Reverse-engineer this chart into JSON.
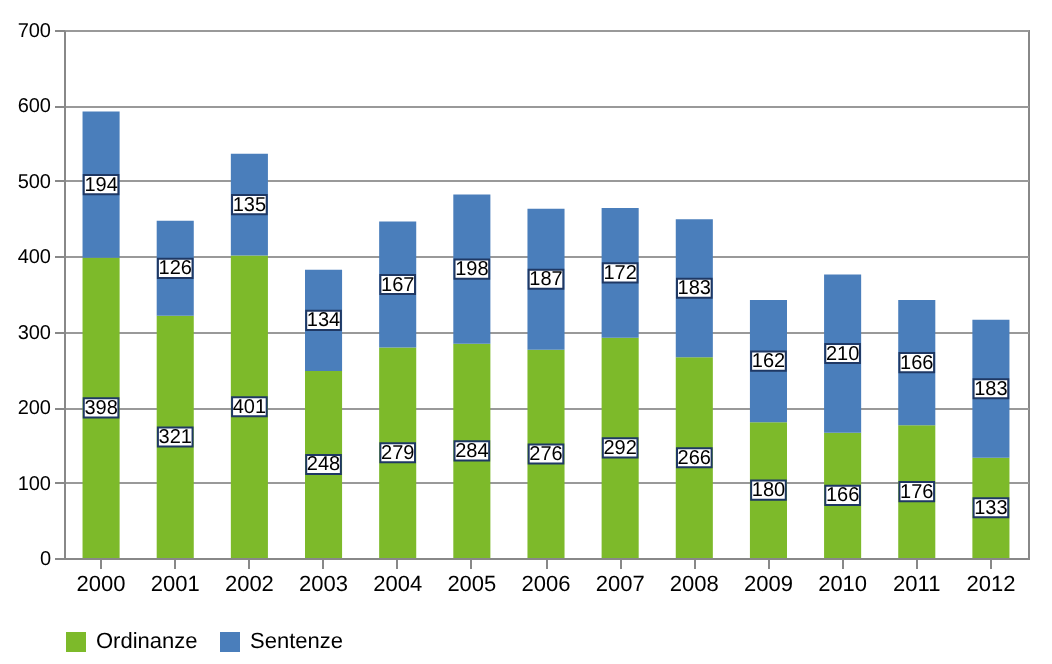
{
  "chart_data": {
    "type": "bar",
    "stacked": true,
    "categories": [
      "2000",
      "2001",
      "2002",
      "2003",
      "2004",
      "2005",
      "2006",
      "2007",
      "2008",
      "2009",
      "2010",
      "2011",
      "2012"
    ],
    "series": [
      {
        "name": "Ordinanze",
        "color": "#7dba2a",
        "values": [
          398,
          321,
          401,
          248,
          279,
          284,
          276,
          292,
          266,
          180,
          166,
          176,
          133
        ]
      },
      {
        "name": "Sentenze",
        "color": "#4a7ebb",
        "values": [
          194,
          126,
          135,
          134,
          167,
          198,
          187,
          172,
          183,
          162,
          210,
          166,
          183
        ]
      }
    ],
    "ylim": [
      0,
      700
    ],
    "yticks": [
      0,
      100,
      200,
      300,
      400,
      500,
      600,
      700
    ],
    "grid": "y",
    "legend": "bottom",
    "data_labels": true
  }
}
